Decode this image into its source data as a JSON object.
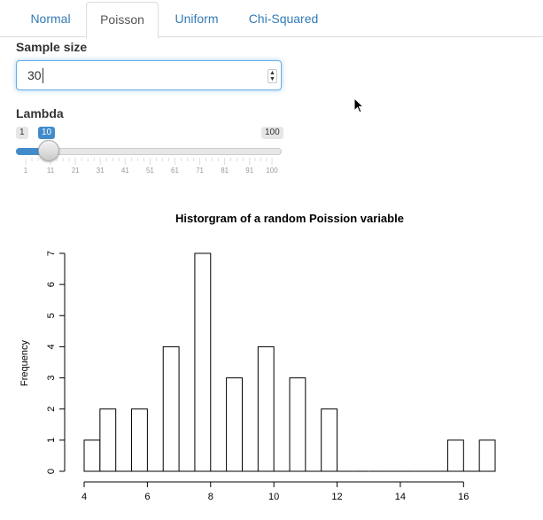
{
  "tabs": [
    {
      "label": "Normal",
      "active": false
    },
    {
      "label": "Poisson",
      "active": true
    },
    {
      "label": "Uniform",
      "active": false
    },
    {
      "label": "Chi-Squared",
      "active": false
    }
  ],
  "sample_size": {
    "label": "Sample size",
    "value": "30"
  },
  "lambda": {
    "label": "Lambda",
    "min_label": "1",
    "max_label": "100",
    "value_label": "10",
    "value": 10,
    "min": 1,
    "max": 100,
    "tick_labels": [
      "1",
      "11",
      "21",
      "31",
      "41",
      "51",
      "61",
      "71",
      "81",
      "91",
      "100"
    ]
  },
  "colors": {
    "accent": "#428bca",
    "link": "#337ab7"
  },
  "icons": {
    "cursor": "mouse-pointer-icon",
    "stepper": "spin-arrows-icon"
  },
  "chart_data": {
    "type": "bar",
    "title": "Historgram of a random Poission variable",
    "xlabel": "",
    "ylabel": "Frequency",
    "bins": [
      {
        "x0": 4.0,
        "x1": 4.5,
        "count": 1
      },
      {
        "x0": 4.5,
        "x1": 5.0,
        "count": 2
      },
      {
        "x0": 5.0,
        "x1": 5.5,
        "count": 0
      },
      {
        "x0": 5.5,
        "x1": 6.0,
        "count": 2
      },
      {
        "x0": 6.0,
        "x1": 6.5,
        "count": 0
      },
      {
        "x0": 6.5,
        "x1": 7.0,
        "count": 4
      },
      {
        "x0": 7.0,
        "x1": 7.5,
        "count": 0
      },
      {
        "x0": 7.5,
        "x1": 8.0,
        "count": 7
      },
      {
        "x0": 8.0,
        "x1": 8.5,
        "count": 0
      },
      {
        "x0": 8.5,
        "x1": 9.0,
        "count": 3
      },
      {
        "x0": 9.0,
        "x1": 9.5,
        "count": 0
      },
      {
        "x0": 9.5,
        "x1": 10.0,
        "count": 4
      },
      {
        "x0": 10.0,
        "x1": 10.5,
        "count": 0
      },
      {
        "x0": 10.5,
        "x1": 11.0,
        "count": 3
      },
      {
        "x0": 11.0,
        "x1": 11.5,
        "count": 0
      },
      {
        "x0": 11.5,
        "x1": 12.0,
        "count": 2
      },
      {
        "x0": 12.0,
        "x1": 12.5,
        "count": 0
      },
      {
        "x0": 12.5,
        "x1": 13.0,
        "count": 0
      },
      {
        "x0": 13.0,
        "x1": 13.5,
        "count": 0
      },
      {
        "x0": 13.5,
        "x1": 14.0,
        "count": 0
      },
      {
        "x0": 14.0,
        "x1": 14.5,
        "count": 0
      },
      {
        "x0": 14.5,
        "x1": 15.0,
        "count": 0
      },
      {
        "x0": 15.0,
        "x1": 15.5,
        "count": 0
      },
      {
        "x0": 15.5,
        "x1": 16.0,
        "count": 1
      },
      {
        "x0": 16.0,
        "x1": 16.5,
        "count": 0
      },
      {
        "x0": 16.5,
        "x1": 17.0,
        "count": 1
      }
    ],
    "x_ticks": [
      4,
      6,
      8,
      10,
      12,
      14,
      16
    ],
    "y_ticks": [
      0,
      1,
      2,
      3,
      4,
      5,
      6,
      7
    ],
    "xlim": [
      4,
      17
    ],
    "ylim": [
      0,
      7
    ],
    "grid": false
  }
}
